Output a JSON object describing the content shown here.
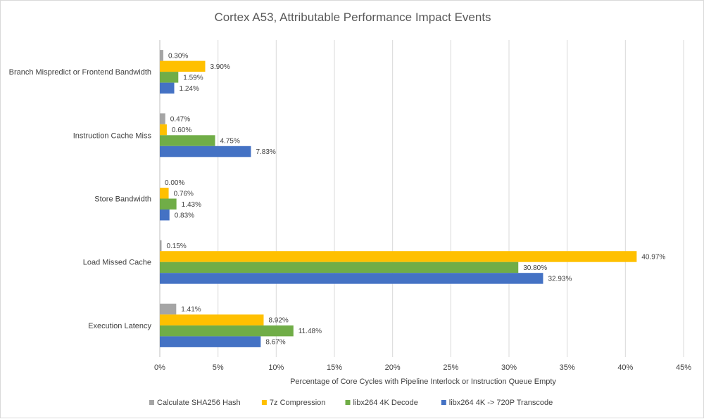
{
  "chart_data": {
    "type": "bar",
    "orientation": "horizontal",
    "title": "Cortex A53, Attributable Performance Impact Events",
    "xlabel": "Percentage of Core Cycles with Pipeline Interlock or Instruction Queue Empty",
    "ylabel": "",
    "xlim": [
      0,
      45
    ],
    "x_ticks": [
      "0%",
      "5%",
      "10%",
      "15%",
      "20%",
      "25%",
      "30%",
      "35%",
      "40%",
      "45%"
    ],
    "grid": "vertical",
    "legend_position": "bottom",
    "categories": [
      "Branch Mispredict or Frontend Bandwidth",
      "Instruction Cache Miss",
      "Store Bandwidth",
      "Load Missed Cache",
      "Execution Latency"
    ],
    "series": [
      {
        "name": "Calculate SHA256 Hash",
        "color": "#a5a5a5",
        "values": [
          0.3,
          0.47,
          0.0,
          0.15,
          1.41
        ],
        "labels": [
          "0.30%",
          "0.47%",
          "0.00%",
          "0.15%",
          "1.41%"
        ]
      },
      {
        "name": "7z Compression",
        "color": "#ffc000",
        "values": [
          3.9,
          0.6,
          0.76,
          40.97,
          8.92
        ],
        "labels": [
          "3.90%",
          "0.60%",
          "0.76%",
          "40.97%",
          "8.92%"
        ]
      },
      {
        "name": "libx264 4K Decode",
        "color": "#70ad47",
        "values": [
          1.59,
          4.75,
          1.43,
          30.8,
          11.48
        ],
        "labels": [
          "1.59%",
          "4.75%",
          "1.43%",
          "30.80%",
          "11.48%"
        ]
      },
      {
        "name": "libx264 4K -> 720P Transcode",
        "color": "#4472c4",
        "values": [
          1.24,
          7.83,
          0.83,
          32.93,
          8.67
        ],
        "labels": [
          "1.24%",
          "7.83%",
          "0.83%",
          "32.93%",
          "8.67%"
        ]
      }
    ]
  }
}
